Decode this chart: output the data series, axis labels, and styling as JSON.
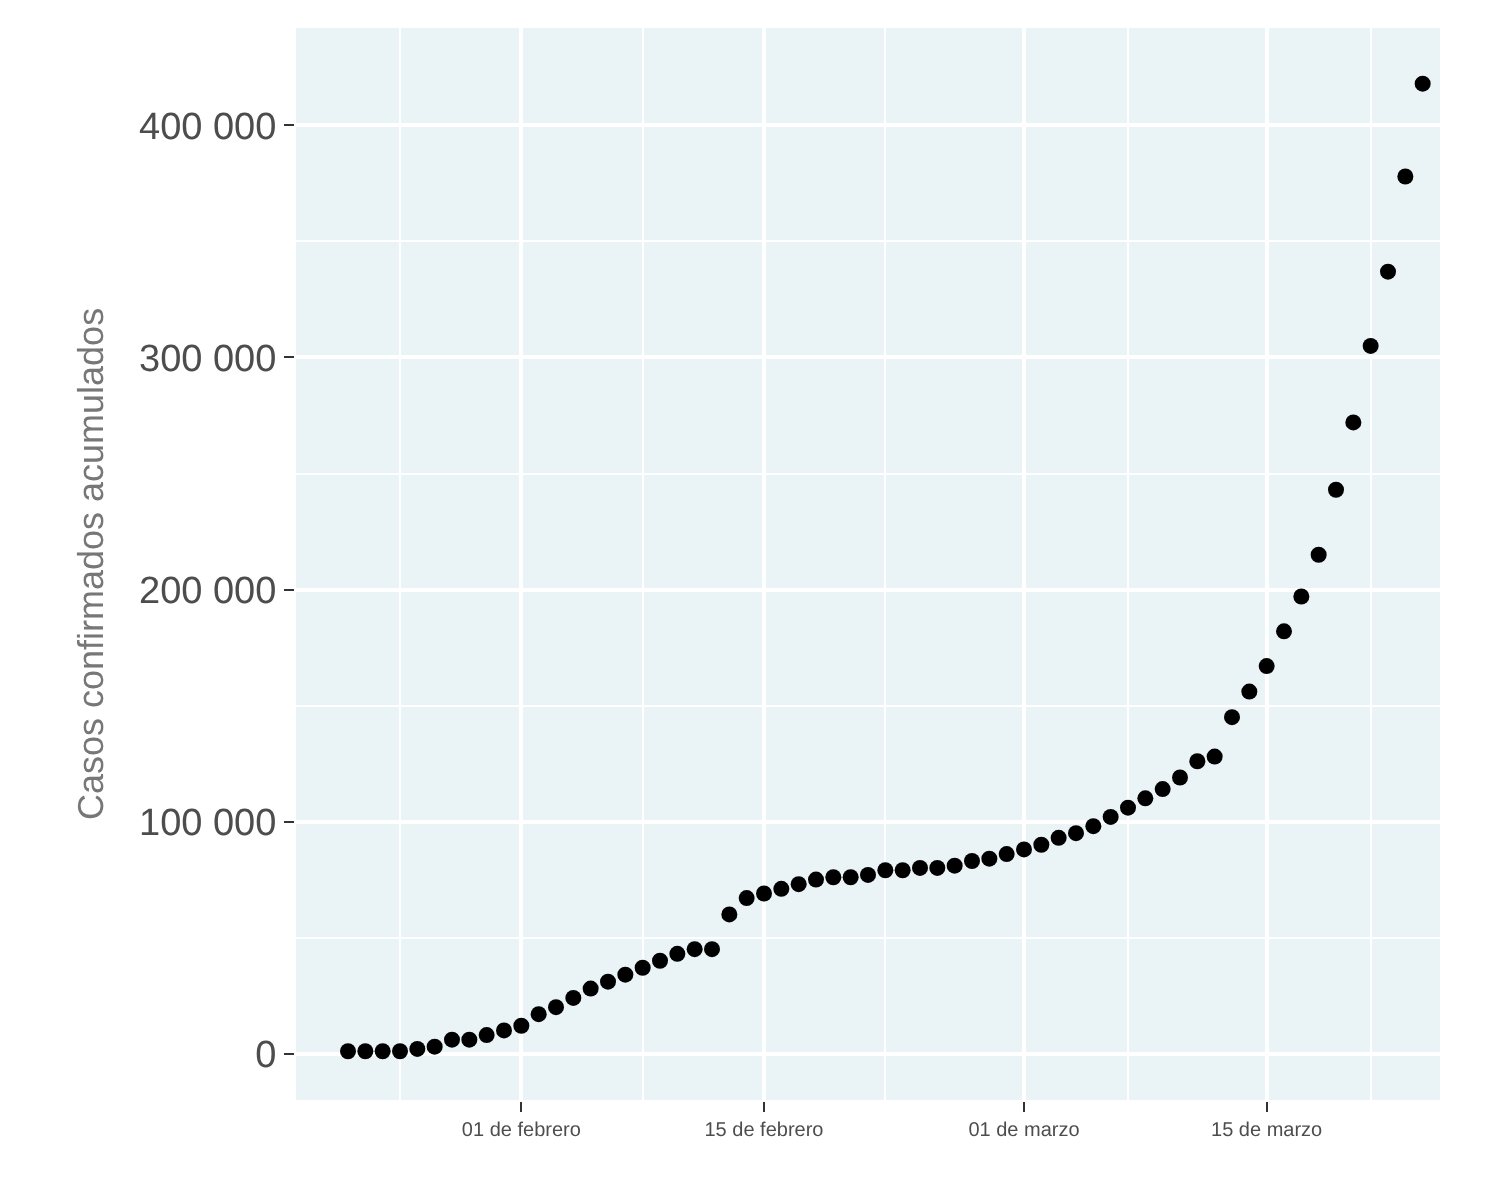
{
  "chart_data": {
    "type": "scatter",
    "ylabel": "Casos confirmados acumulados",
    "x": [
      "--01-22",
      "--01-23",
      "--01-24",
      "--01-25",
      "--01-26",
      "--01-27",
      "--01-28",
      "--01-29",
      "--01-30",
      "--01-31",
      "--02-01",
      "--02-02",
      "--02-03",
      "--02-04",
      "--02-05",
      "--02-06",
      "--02-07",
      "--02-08",
      "--02-09",
      "--02-10",
      "--02-11",
      "--02-12",
      "--02-13",
      "--02-14",
      "--02-15",
      "--02-16",
      "--02-17",
      "--02-18",
      "--02-19",
      "--02-20",
      "--02-21",
      "--02-22",
      "--02-23",
      "--02-24",
      "--02-25",
      "--02-26",
      "--02-27",
      "--02-28",
      "--02-29",
      "--03-01",
      "--03-02",
      "--03-03",
      "--03-04",
      "--03-05",
      "--03-06",
      "--03-07",
      "--03-08",
      "--03-09",
      "--03-10",
      "--03-11",
      "--03-12",
      "--03-13",
      "--03-14",
      "--03-15",
      "--03-16",
      "--03-17",
      "--03-18",
      "--03-19",
      "--03-20",
      "--03-21",
      "--03-22",
      "--03-23",
      "--03-24"
    ],
    "series": [
      {
        "color": "#000000",
        "values": [
          1000,
          1000,
          1000,
          1000,
          2000,
          3000,
          6000,
          6000,
          8000,
          10000,
          12000,
          17000,
          20000,
          24000,
          28000,
          31000,
          34000,
          37000,
          40000,
          43000,
          45000,
          45000,
          60000,
          67000,
          69000,
          71000,
          73000,
          75000,
          76000,
          76000,
          77000,
          79000,
          79000,
          80000,
          80000,
          81000,
          83000,
          84000,
          86000,
          88000,
          90000,
          93000,
          95000,
          98000,
          102000,
          106000,
          110000,
          114000,
          119000,
          126000,
          128000,
          145000,
          156000,
          167000,
          182000,
          197000,
          215000,
          243000,
          272000,
          305000,
          337000,
          378000,
          418000
        ]
      }
    ],
    "xlim": [
      "--01-19",
      "--03-25"
    ],
    "xticks": [
      {
        "value": "--02-01",
        "label": "01 de febrero"
      },
      {
        "value": "--02-15",
        "label": "15 de febrero"
      },
      {
        "value": "--03-01",
        "label": "01 de marzo"
      },
      {
        "value": "--03-15",
        "label": "15 de marzo"
      }
    ],
    "ylim": [
      -20000,
      442000
    ],
    "yticks": [
      0,
      {
        "value": 100000,
        "label": "100 000"
      },
      {
        "value": 200000,
        "label": "200 000"
      },
      {
        "value": 300000,
        "label": "300 000"
      },
      {
        "value": 400000,
        "label": "400 000"
      }
    ],
    "grid": true,
    "marker": "circle",
    "legend": false
  }
}
